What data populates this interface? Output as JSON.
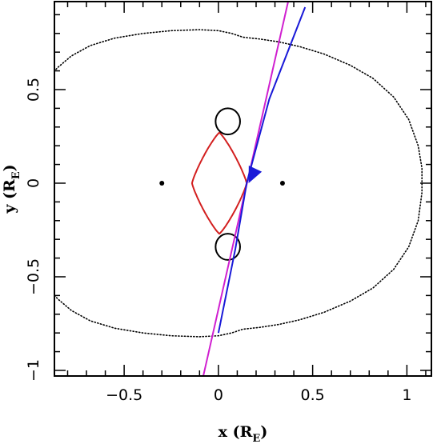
{
  "chart_data": {
    "type": "scatter",
    "title": "",
    "xlim": [
      -0.87,
      1.13
    ],
    "ylim": [
      -1.03,
      0.97
    ],
    "x_ticks_major": [
      -0.5,
      0,
      0.5,
      1
    ],
    "x_tick_labels": [
      "−0.5",
      "0",
      "0.5",
      "1"
    ],
    "y_ticks_major": [
      -1,
      -0.5,
      0,
      0.5
    ],
    "y_tick_labels": [
      "−1",
      "−0.5",
      "0",
      "0.5"
    ],
    "minor_tick_step": 0.1,
    "xlabel": {
      "main": "x (R",
      "sub": "E",
      "close": ")"
    },
    "ylabel": {
      "main": "y (R",
      "sub": "E",
      "close": ")"
    },
    "grid": false,
    "colors": {
      "caustic": "#d32020",
      "magenta_track": "#d020d0",
      "blue_track": "#1a1ad8",
      "axes": "#000000"
    },
    "lenses": [
      {
        "x": -0.3,
        "y": 0
      },
      {
        "x": 0.34,
        "y": 0
      }
    ],
    "central_caustic": {
      "cusps": [
        {
          "x": -0.14,
          "y": 0
        },
        {
          "x": 0.15,
          "y": 0
        },
        {
          "x": 0.0,
          "y": 0.27
        },
        {
          "x": 0.0,
          "y": -0.27
        }
      ],
      "concavity": 1.7
    },
    "planetary_caustics": [
      {
        "cx": 0.05,
        "cy": 0.33,
        "rx": 0.065,
        "ry": 0.07
      },
      {
        "cx": 0.05,
        "cy": -0.34,
        "rx": 0.065,
        "ry": 0.07
      }
    ],
    "tracks": [
      {
        "color": "magenta",
        "points": [
          {
            "x": -0.08,
            "y": -1.03
          },
          {
            "x": 0.37,
            "y": 0.97
          }
        ]
      },
      {
        "color": "blue",
        "points": [
          {
            "x": 0.0,
            "y": -0.8
          },
          {
            "x": 0.09,
            "y": -0.35
          },
          {
            "x": 0.15,
            "y": 0.0
          },
          {
            "x": 0.27,
            "y": 0.45
          },
          {
            "x": 0.46,
            "y": 0.94
          }
        ]
      }
    ],
    "arrow": {
      "x": 0.16,
      "y": 0.0,
      "dir_x": -0.06,
      "dir_y": -0.13
    },
    "critical_curve": [
      {
        "x": -0.87,
        "y": -0.6
      },
      {
        "x": -0.85,
        "y": -0.62
      },
      {
        "x": -0.78,
        "y": -0.68
      },
      {
        "x": -0.68,
        "y": -0.735
      },
      {
        "x": -0.55,
        "y": -0.775
      },
      {
        "x": -0.4,
        "y": -0.8
      },
      {
        "x": -0.25,
        "y": -0.815
      },
      {
        "x": -0.1,
        "y": -0.82
      },
      {
        "x": 0.0,
        "y": -0.815
      },
      {
        "x": 0.07,
        "y": -0.8
      },
      {
        "x": 0.13,
        "y": -0.78
      },
      {
        "x": 0.22,
        "y": -0.77
      },
      {
        "x": 0.32,
        "y": -0.755
      },
      {
        "x": 0.43,
        "y": -0.73
      },
      {
        "x": 0.56,
        "y": -0.69
      },
      {
        "x": 0.7,
        "y": -0.63
      },
      {
        "x": 0.82,
        "y": -0.56
      },
      {
        "x": 0.93,
        "y": -0.46
      },
      {
        "x": 1.01,
        "y": -0.34
      },
      {
        "x": 1.06,
        "y": -0.2
      },
      {
        "x": 1.08,
        "y": -0.05
      },
      {
        "x": 1.08,
        "y": 0.08
      },
      {
        "x": 1.06,
        "y": 0.2
      },
      {
        "x": 1.01,
        "y": 0.34
      },
      {
        "x": 0.93,
        "y": 0.46
      },
      {
        "x": 0.82,
        "y": 0.56
      },
      {
        "x": 0.7,
        "y": 0.63
      },
      {
        "x": 0.56,
        "y": 0.69
      },
      {
        "x": 0.43,
        "y": 0.73
      },
      {
        "x": 0.32,
        "y": 0.755
      },
      {
        "x": 0.22,
        "y": 0.77
      },
      {
        "x": 0.13,
        "y": 0.78
      },
      {
        "x": 0.07,
        "y": 0.8
      },
      {
        "x": 0.0,
        "y": 0.815
      },
      {
        "x": -0.1,
        "y": 0.82
      },
      {
        "x": -0.25,
        "y": 0.815
      },
      {
        "x": -0.4,
        "y": 0.8
      },
      {
        "x": -0.55,
        "y": 0.775
      },
      {
        "x": -0.68,
        "y": 0.735
      },
      {
        "x": -0.78,
        "y": 0.68
      },
      {
        "x": -0.85,
        "y": 0.62
      },
      {
        "x": -0.87,
        "y": 0.6
      }
    ]
  }
}
